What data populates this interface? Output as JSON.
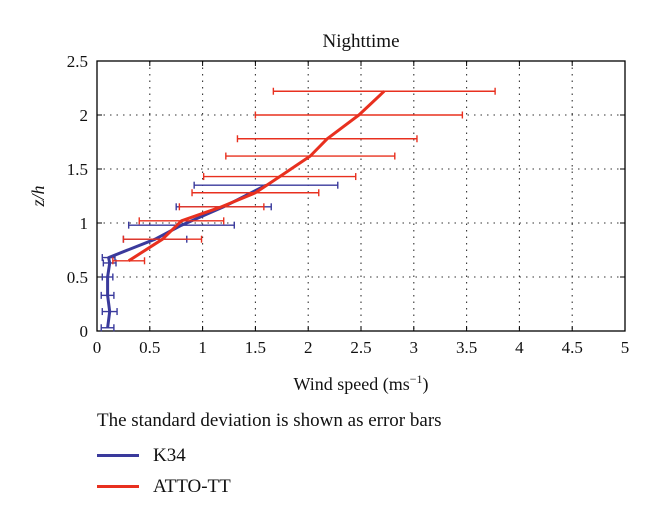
{
  "chart_data": {
    "type": "line",
    "title": "Nighttime",
    "xlabel": "Wind speed (ms",
    "xlabel_sup": "−1",
    "xlabel_close": ")",
    "ylabel": "z/h",
    "xlim": [
      0,
      5
    ],
    "ylim": [
      0,
      2.5
    ],
    "xticks": [
      "0",
      "0.5",
      "1",
      "1.5",
      "2",
      "2.5",
      "3",
      "3.5",
      "4",
      "4.5",
      "5"
    ],
    "yticks": [
      "0",
      "0.5",
      "1",
      "1.5",
      "2",
      "2.5"
    ],
    "grid": true,
    "series": [
      {
        "name": "K34",
        "color": "#3a3a9c",
        "points": [
          {
            "x": 0.1,
            "y": 0.03,
            "err": 0.06
          },
          {
            "x": 0.12,
            "y": 0.18,
            "err": 0.07
          },
          {
            "x": 0.1,
            "y": 0.33,
            "err": 0.06
          },
          {
            "x": 0.1,
            "y": 0.5,
            "err": 0.05
          },
          {
            "x": 0.12,
            "y": 0.63,
            "err": 0.06
          },
          {
            "x": 0.11,
            "y": 0.68,
            "err": 0.06
          },
          {
            "x": 0.55,
            "y": 0.85,
            "err": 0.3
          },
          {
            "x": 0.8,
            "y": 0.98,
            "err": 0.5
          },
          {
            "x": 1.2,
            "y": 1.15,
            "err": 0.45
          },
          {
            "x": 1.6,
            "y": 1.35,
            "err": 0.68
          }
        ]
      },
      {
        "name": "ATTO-TT",
        "color": "#e8301f",
        "points": [
          {
            "x": 0.3,
            "y": 0.65,
            "err": 0.15
          },
          {
            "x": 0.62,
            "y": 0.85,
            "err": 0.37
          },
          {
            "x": 0.8,
            "y": 1.02,
            "err": 0.4
          },
          {
            "x": 1.18,
            "y": 1.15,
            "err": 0.4
          },
          {
            "x": 1.5,
            "y": 1.28,
            "err": 0.6
          },
          {
            "x": 1.73,
            "y": 1.43,
            "err": 0.72
          },
          {
            "x": 2.02,
            "y": 1.62,
            "err": 0.8
          },
          {
            "x": 2.18,
            "y": 1.78,
            "err": 0.85
          },
          {
            "x": 2.48,
            "y": 2.0,
            "err": 0.98
          },
          {
            "x": 2.72,
            "y": 2.22,
            "err": 1.05
          }
        ]
      }
    ]
  },
  "note": "The standard deviation is shown as error bars",
  "legend": [
    "K34",
    "ATTO-TT"
  ]
}
